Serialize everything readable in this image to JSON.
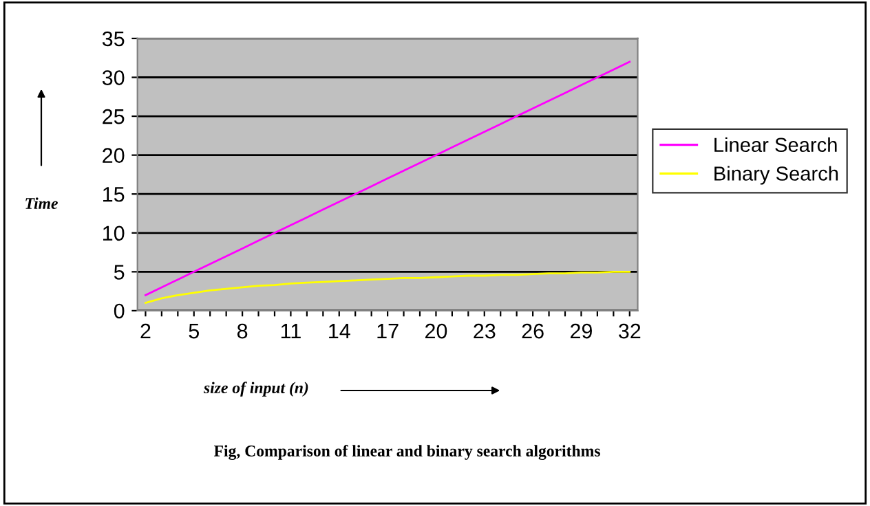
{
  "chart_data": {
    "type": "line",
    "categories": [
      "2",
      null,
      null,
      "5",
      null,
      null,
      "8",
      null,
      null,
      "11",
      null,
      null,
      "14",
      null,
      null,
      "17",
      null,
      null,
      "20",
      null,
      null,
      "23",
      null,
      null,
      "26",
      null,
      null,
      "29",
      null,
      null,
      "32"
    ],
    "series": [
      {
        "name": "Linear Search",
        "color": "#ff00ff",
        "values": [
          2,
          3,
          4,
          5,
          6,
          7,
          8,
          9,
          10,
          11,
          12,
          13,
          14,
          15,
          16,
          17,
          18,
          19,
          20,
          21,
          22,
          23,
          24,
          25,
          26,
          27,
          28,
          29,
          30,
          31,
          32
        ]
      },
      {
        "name": "Binary Search",
        "color": "#ffff00",
        "values": [
          1.0,
          1.6,
          2.0,
          2.3,
          2.6,
          2.8,
          3.0,
          3.2,
          3.3,
          3.5,
          3.6,
          3.7,
          3.8,
          3.9,
          4.0,
          4.1,
          4.2,
          4.2,
          4.3,
          4.4,
          4.5,
          4.5,
          4.6,
          4.6,
          4.7,
          4.8,
          4.8,
          4.9,
          4.9,
          5.0,
          5.0
        ]
      }
    ],
    "ylim": [
      0,
      35
    ],
    "yticks": [
      0,
      5,
      10,
      15,
      20,
      25,
      30,
      35
    ],
    "ylabel": "Time",
    "xlabel": "size of input (n)",
    "annotations": [
      "Fig, Comparison of linear and binary search algorithms"
    ],
    "grid": "y",
    "legend": "right",
    "marker": "none",
    "line_style": "solid"
  }
}
